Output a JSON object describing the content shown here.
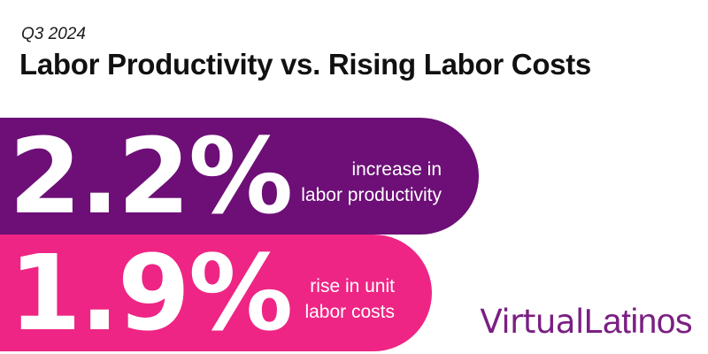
{
  "header": {
    "period": "Q3 2024",
    "title": "Labor Productivity vs. Rising Labor Costs"
  },
  "stats": [
    {
      "value": "2.2%",
      "line1": "increase in",
      "line2": "labor productivity",
      "color": "#6d0f77"
    },
    {
      "value": "1.9%",
      "line1": "rise in unit",
      "line2": "labor costs",
      "color": "#ee2584"
    }
  ],
  "logo": {
    "part1": "Virtual",
    "part2": "Latinos",
    "color": "#7a1f82"
  }
}
